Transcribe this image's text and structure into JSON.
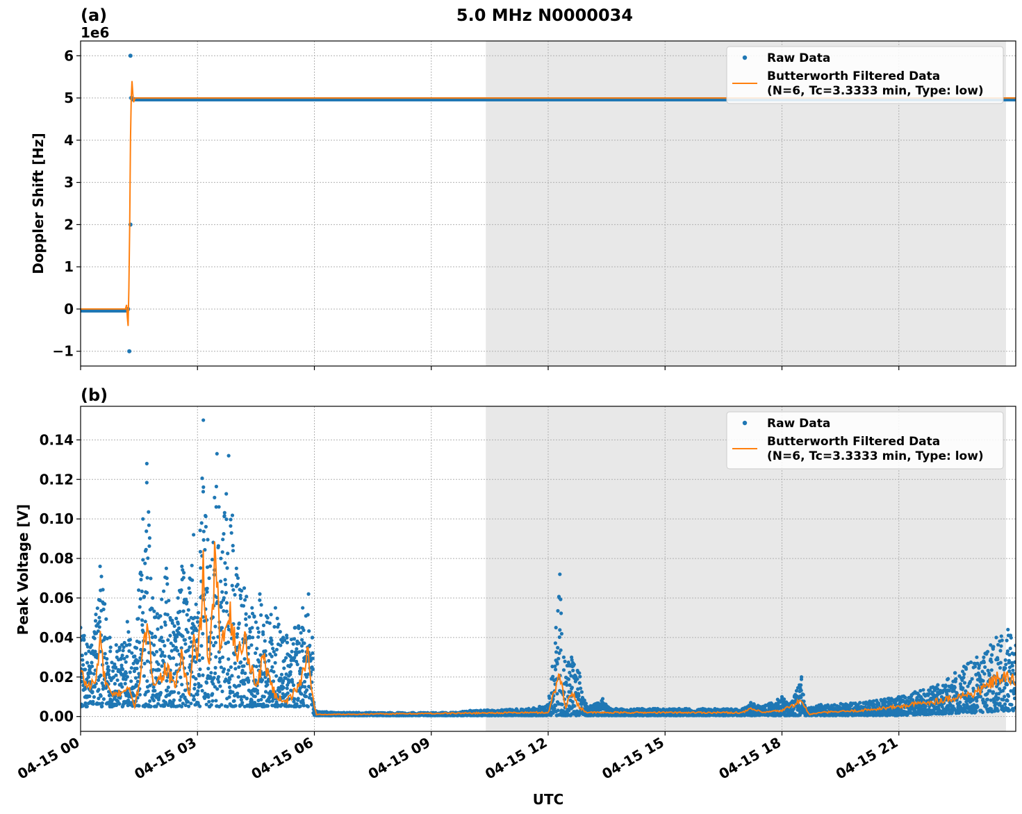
{
  "figure": {
    "title": "5.0 MHz N0000034",
    "xlabel": "UTC"
  },
  "colors": {
    "raw": "#1f77b4",
    "filtered": "#ff7f0e",
    "shade": "#e8e8e8",
    "grid": "#b0b0b0"
  },
  "legend": {
    "raw_label": "Raw Data",
    "filtered_label_line1": "Butterworth Filtered Data",
    "filtered_label_line2": "(N=6, Tc=3.3333 min, Type: low)",
    "placement": "top-right"
  },
  "x_ticks": [
    {
      "hour": 0,
      "label": "04-15 00"
    },
    {
      "hour": 3,
      "label": "04-15 03"
    },
    {
      "hour": 6,
      "label": "04-15 06"
    },
    {
      "hour": 9,
      "label": "04-15 09"
    },
    {
      "hour": 12,
      "label": "04-15 12"
    },
    {
      "hour": 15,
      "label": "04-15 15"
    },
    {
      "hour": 18,
      "label": "04-15 18"
    },
    {
      "hour": 21,
      "label": "04-15 21"
    }
  ],
  "chart_data": [
    {
      "type": "scatter",
      "panel_label": "(a)",
      "ylabel": "Doppler Shift [Hz]",
      "offset_text": "1e6",
      "xlim_hours": [
        0,
        24
      ],
      "ylim": [
        -1.35,
        6.35
      ],
      "yticks": [
        {
          "v": -1,
          "label": "−1"
        },
        {
          "v": 0,
          "label": "0"
        },
        {
          "v": 1,
          "label": "1"
        },
        {
          "v": 2,
          "label": "2"
        },
        {
          "v": 3,
          "label": "3"
        },
        {
          "v": 4,
          "label": "4"
        },
        {
          "v": 5,
          "label": "5"
        },
        {
          "v": 6,
          "label": "6"
        }
      ],
      "grid": true,
      "shaded_region_hours": [
        10.4,
        23.75
      ],
      "raw_points": [
        [
          1.28,
          6.0
        ],
        [
          1.28,
          2.0
        ],
        [
          1.25,
          -1.0
        ],
        [
          1.3,
          5.0
        ],
        [
          1.22,
          0.0
        ]
      ],
      "raw_levels": [
        {
          "from": 0,
          "to": 1.22,
          "value": 0.0
        },
        {
          "from": 1.3,
          "to": 24,
          "value": 5.0
        }
      ],
      "filtered": [
        [
          0,
          0.0
        ],
        [
          1.15,
          0.0
        ],
        [
          1.18,
          0.1
        ],
        [
          1.2,
          -0.2
        ],
        [
          1.22,
          -0.4
        ],
        [
          1.24,
          0.5
        ],
        [
          1.26,
          2.0
        ],
        [
          1.28,
          4.0
        ],
        [
          1.3,
          5.0
        ],
        [
          1.32,
          5.4
        ],
        [
          1.34,
          5.1
        ],
        [
          1.36,
          4.9
        ],
        [
          1.4,
          5.0
        ],
        [
          24,
          5.0
        ]
      ]
    },
    {
      "type": "scatter",
      "panel_label": "(b)",
      "ylabel": "Peak Voltage [V]",
      "xlim_hours": [
        0,
        24
      ],
      "ylim": [
        -0.0075,
        0.157
      ],
      "yticks": [
        {
          "v": 0.0,
          "label": "0.00"
        },
        {
          "v": 0.02,
          "label": "0.02"
        },
        {
          "v": 0.04,
          "label": "0.04"
        },
        {
          "v": 0.06,
          "label": "0.06"
        },
        {
          "v": 0.08,
          "label": "0.08"
        },
        {
          "v": 0.1,
          "label": "0.10"
        },
        {
          "v": 0.12,
          "label": "0.12"
        },
        {
          "v": 0.14,
          "label": "0.14"
        }
      ],
      "grid": true,
      "shaded_region_hours": [
        10.4,
        23.75
      ],
      "raw_envelope": [
        [
          0.0,
          0.045
        ],
        [
          0.25,
          0.035
        ],
        [
          0.5,
          0.076
        ],
        [
          0.75,
          0.04
        ],
        [
          1.0,
          0.035
        ],
        [
          1.2,
          0.048
        ],
        [
          1.4,
          0.035
        ],
        [
          1.6,
          0.1
        ],
        [
          1.7,
          0.128
        ],
        [
          1.85,
          0.06
        ],
        [
          2.0,
          0.05
        ],
        [
          2.2,
          0.075
        ],
        [
          2.3,
          0.05
        ],
        [
          2.5,
          0.06
        ],
        [
          2.6,
          0.076
        ],
        [
          2.8,
          0.07
        ],
        [
          2.9,
          0.092
        ],
        [
          3.0,
          0.05
        ],
        [
          3.15,
          0.15
        ],
        [
          3.3,
          0.07
        ],
        [
          3.5,
          0.133
        ],
        [
          3.6,
          0.08
        ],
        [
          3.8,
          0.132
        ],
        [
          4.0,
          0.075
        ],
        [
          4.2,
          0.065
        ],
        [
          4.4,
          0.055
        ],
        [
          4.6,
          0.062
        ],
        [
          4.8,
          0.05
        ],
        [
          5.0,
          0.055
        ],
        [
          5.2,
          0.04
        ],
        [
          5.5,
          0.045
        ],
        [
          5.7,
          0.055
        ],
        [
          5.85,
          0.062
        ],
        [
          5.95,
          0.04
        ],
        [
          6.0,
          0.003
        ],
        [
          6.5,
          0.002
        ],
        [
          9.5,
          0.002
        ],
        [
          10.0,
          0.003
        ],
        [
          11.5,
          0.004
        ],
        [
          12.0,
          0.006
        ],
        [
          12.2,
          0.045
        ],
        [
          12.3,
          0.072
        ],
        [
          12.4,
          0.03
        ],
        [
          12.6,
          0.03
        ],
        [
          12.8,
          0.022
        ],
        [
          13.0,
          0.005
        ],
        [
          13.4,
          0.009
        ],
        [
          13.6,
          0.004
        ],
        [
          17.0,
          0.004
        ],
        [
          17.2,
          0.007
        ],
        [
          17.5,
          0.005
        ],
        [
          18.0,
          0.01
        ],
        [
          18.2,
          0.006
        ],
        [
          18.5,
          0.02
        ],
        [
          18.6,
          0.004
        ],
        [
          19.0,
          0.006
        ],
        [
          20.0,
          0.007
        ],
        [
          21.0,
          0.01
        ],
        [
          22.0,
          0.016
        ],
        [
          23.0,
          0.03
        ],
        [
          23.5,
          0.04
        ],
        [
          23.8,
          0.044
        ],
        [
          24.0,
          0.036
        ]
      ],
      "raw_floor": [
        [
          0.0,
          0.005
        ],
        [
          5.9,
          0.005
        ],
        [
          6.0,
          0.0005
        ],
        [
          21.0,
          0.0005
        ],
        [
          23.0,
          0.002
        ],
        [
          24.0,
          0.003
        ]
      ],
      "filtered": [
        [
          0.0,
          0.022
        ],
        [
          0.2,
          0.015
        ],
        [
          0.4,
          0.018
        ],
        [
          0.5,
          0.042
        ],
        [
          0.6,
          0.02
        ],
        [
          0.8,
          0.01
        ],
        [
          1.0,
          0.012
        ],
        [
          1.2,
          0.015
        ],
        [
          1.4,
          0.005
        ],
        [
          1.6,
          0.03
        ],
        [
          1.7,
          0.045
        ],
        [
          1.85,
          0.02
        ],
        [
          2.0,
          0.018
        ],
        [
          2.2,
          0.025
        ],
        [
          2.4,
          0.015
        ],
        [
          2.6,
          0.03
        ],
        [
          2.8,
          0.01
        ],
        [
          2.9,
          0.04
        ],
        [
          3.0,
          0.025
        ],
        [
          3.15,
          0.072
        ],
        [
          3.3,
          0.02
        ],
        [
          3.45,
          0.082
        ],
        [
          3.6,
          0.03
        ],
        [
          3.8,
          0.06
        ],
        [
          4.0,
          0.03
        ],
        [
          4.2,
          0.04
        ],
        [
          4.5,
          0.015
        ],
        [
          4.7,
          0.03
        ],
        [
          5.0,
          0.01
        ],
        [
          5.3,
          0.008
        ],
        [
          5.6,
          0.015
        ],
        [
          5.85,
          0.034
        ],
        [
          5.95,
          0.01
        ],
        [
          6.05,
          0.001
        ],
        [
          11.5,
          0.002
        ],
        [
          12.0,
          0.002
        ],
        [
          12.2,
          0.015
        ],
        [
          12.3,
          0.022
        ],
        [
          12.45,
          0.005
        ],
        [
          12.6,
          0.012
        ],
        [
          12.8,
          0.005
        ],
        [
          13.0,
          0.002
        ],
        [
          17.0,
          0.002
        ],
        [
          17.2,
          0.004
        ],
        [
          17.5,
          0.002
        ],
        [
          18.0,
          0.003
        ],
        [
          18.5,
          0.008
        ],
        [
          18.7,
          0.001
        ],
        [
          19.0,
          0.002
        ],
        [
          20.0,
          0.003
        ],
        [
          21.0,
          0.005
        ],
        [
          22.0,
          0.008
        ],
        [
          23.0,
          0.012
        ],
        [
          23.6,
          0.02
        ],
        [
          24.0,
          0.018
        ]
      ]
    }
  ]
}
